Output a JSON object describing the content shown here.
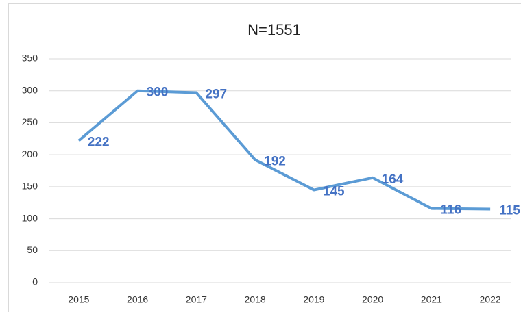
{
  "chart_data": {
    "type": "line",
    "title": "N=1551",
    "categories": [
      "2015",
      "2016",
      "2017",
      "2018",
      "2019",
      "2020",
      "2021",
      "2022"
    ],
    "values": [
      222,
      300,
      297,
      192,
      145,
      164,
      116,
      115
    ],
    "color": "#5b9bd5",
    "label_color": "#4472c4",
    "ylim": [
      0,
      350
    ],
    "yticks": [
      0,
      50,
      100,
      150,
      200,
      250,
      300,
      350
    ],
    "grid": true
  }
}
